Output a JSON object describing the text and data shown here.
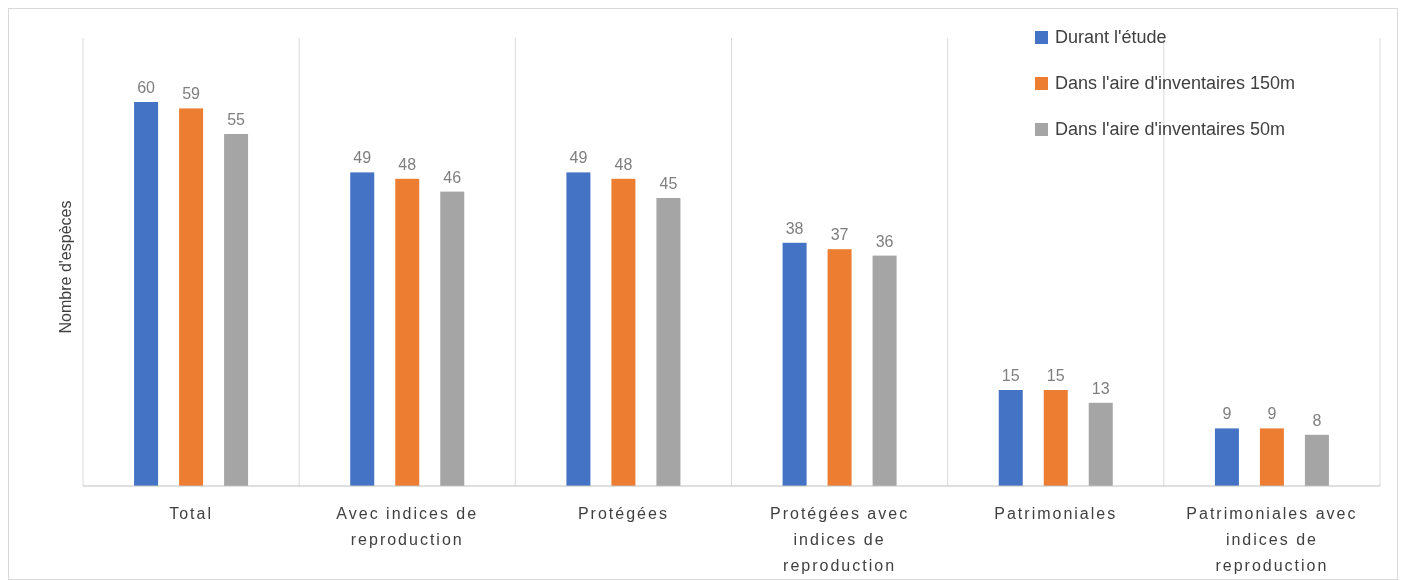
{
  "chart_data": {
    "type": "bar",
    "ylabel": "Nombre d'espèces",
    "categories": [
      "Total",
      "Avec indices de reproduction",
      "Protégées",
      "Protégées avec indices de reproduction",
      "Patrimoniales",
      "Patrimoniales avec indices de reproduction"
    ],
    "series": [
      {
        "name": "Durant l'étude",
        "color": "#4472c4",
        "values": [
          60,
          49,
          49,
          38,
          15,
          9
        ]
      },
      {
        "name": "Dans l'aire d'inventaires 150m",
        "color": "#ed7d31",
        "values": [
          59,
          48,
          48,
          37,
          15,
          9
        ]
      },
      {
        "name": "Dans l'aire d'inventaires 50m",
        "color": "#a5a5a5",
        "values": [
          55,
          46,
          45,
          36,
          13,
          8
        ]
      }
    ],
    "ylim": [
      0,
      70
    ],
    "data_labels": true,
    "grid": "x",
    "legend": "top right"
  }
}
